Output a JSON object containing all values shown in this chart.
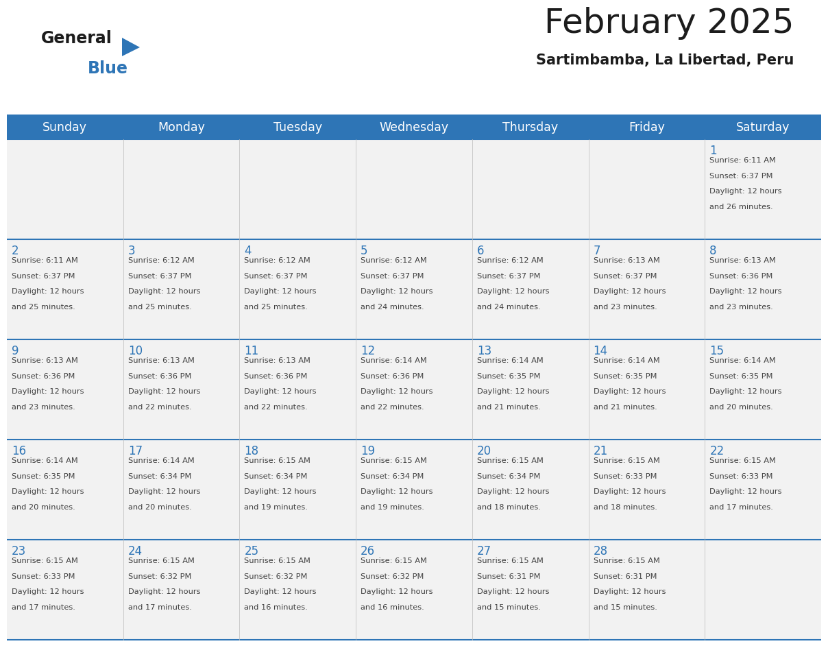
{
  "title": "February 2025",
  "subtitle": "Sartimbamba, La Libertad, Peru",
  "days_of_week": [
    "Sunday",
    "Monday",
    "Tuesday",
    "Wednesday",
    "Thursday",
    "Friday",
    "Saturday"
  ],
  "header_bg": "#2e75b6",
  "header_text": "#ffffff",
  "cell_bg": "#f2f2f2",
  "day_num_color": "#2e75b6",
  "text_color": "#404040",
  "line_color": "#2e75b6",
  "days": [
    {
      "day": 1,
      "col": 6,
      "row": 0,
      "sunrise": "6:11 AM",
      "sunset": "6:37 PM",
      "daylight_suffix": "26 minutes."
    },
    {
      "day": 2,
      "col": 0,
      "row": 1,
      "sunrise": "6:11 AM",
      "sunset": "6:37 PM",
      "daylight_suffix": "25 minutes."
    },
    {
      "day": 3,
      "col": 1,
      "row": 1,
      "sunrise": "6:12 AM",
      "sunset": "6:37 PM",
      "daylight_suffix": "25 minutes."
    },
    {
      "day": 4,
      "col": 2,
      "row": 1,
      "sunrise": "6:12 AM",
      "sunset": "6:37 PM",
      "daylight_suffix": "25 minutes."
    },
    {
      "day": 5,
      "col": 3,
      "row": 1,
      "sunrise": "6:12 AM",
      "sunset": "6:37 PM",
      "daylight_suffix": "24 minutes."
    },
    {
      "day": 6,
      "col": 4,
      "row": 1,
      "sunrise": "6:12 AM",
      "sunset": "6:37 PM",
      "daylight_suffix": "24 minutes."
    },
    {
      "day": 7,
      "col": 5,
      "row": 1,
      "sunrise": "6:13 AM",
      "sunset": "6:37 PM",
      "daylight_suffix": "23 minutes."
    },
    {
      "day": 8,
      "col": 6,
      "row": 1,
      "sunrise": "6:13 AM",
      "sunset": "6:36 PM",
      "daylight_suffix": "23 minutes."
    },
    {
      "day": 9,
      "col": 0,
      "row": 2,
      "sunrise": "6:13 AM",
      "sunset": "6:36 PM",
      "daylight_suffix": "23 minutes."
    },
    {
      "day": 10,
      "col": 1,
      "row": 2,
      "sunrise": "6:13 AM",
      "sunset": "6:36 PM",
      "daylight_suffix": "22 minutes."
    },
    {
      "day": 11,
      "col": 2,
      "row": 2,
      "sunrise": "6:13 AM",
      "sunset": "6:36 PM",
      "daylight_suffix": "22 minutes."
    },
    {
      "day": 12,
      "col": 3,
      "row": 2,
      "sunrise": "6:14 AM",
      "sunset": "6:36 PM",
      "daylight_suffix": "22 minutes."
    },
    {
      "day": 13,
      "col": 4,
      "row": 2,
      "sunrise": "6:14 AM",
      "sunset": "6:35 PM",
      "daylight_suffix": "21 minutes."
    },
    {
      "day": 14,
      "col": 5,
      "row": 2,
      "sunrise": "6:14 AM",
      "sunset": "6:35 PM",
      "daylight_suffix": "21 minutes."
    },
    {
      "day": 15,
      "col": 6,
      "row": 2,
      "sunrise": "6:14 AM",
      "sunset": "6:35 PM",
      "daylight_suffix": "20 minutes."
    },
    {
      "day": 16,
      "col": 0,
      "row": 3,
      "sunrise": "6:14 AM",
      "sunset": "6:35 PM",
      "daylight_suffix": "20 minutes."
    },
    {
      "day": 17,
      "col": 1,
      "row": 3,
      "sunrise": "6:14 AM",
      "sunset": "6:34 PM",
      "daylight_suffix": "20 minutes."
    },
    {
      "day": 18,
      "col": 2,
      "row": 3,
      "sunrise": "6:15 AM",
      "sunset": "6:34 PM",
      "daylight_suffix": "19 minutes."
    },
    {
      "day": 19,
      "col": 3,
      "row": 3,
      "sunrise": "6:15 AM",
      "sunset": "6:34 PM",
      "daylight_suffix": "19 minutes."
    },
    {
      "day": 20,
      "col": 4,
      "row": 3,
      "sunrise": "6:15 AM",
      "sunset": "6:34 PM",
      "daylight_suffix": "18 minutes."
    },
    {
      "day": 21,
      "col": 5,
      "row": 3,
      "sunrise": "6:15 AM",
      "sunset": "6:33 PM",
      "daylight_suffix": "18 minutes."
    },
    {
      "day": 22,
      "col": 6,
      "row": 3,
      "sunrise": "6:15 AM",
      "sunset": "6:33 PM",
      "daylight_suffix": "17 minutes."
    },
    {
      "day": 23,
      "col": 0,
      "row": 4,
      "sunrise": "6:15 AM",
      "sunset": "6:33 PM",
      "daylight_suffix": "17 minutes."
    },
    {
      "day": 24,
      "col": 1,
      "row": 4,
      "sunrise": "6:15 AM",
      "sunset": "6:32 PM",
      "daylight_suffix": "17 minutes."
    },
    {
      "day": 25,
      "col": 2,
      "row": 4,
      "sunrise": "6:15 AM",
      "sunset": "6:32 PM",
      "daylight_suffix": "16 minutes."
    },
    {
      "day": 26,
      "col": 3,
      "row": 4,
      "sunrise": "6:15 AM",
      "sunset": "6:32 PM",
      "daylight_suffix": "16 minutes."
    },
    {
      "day": 27,
      "col": 4,
      "row": 4,
      "sunrise": "6:15 AM",
      "sunset": "6:31 PM",
      "daylight_suffix": "15 minutes."
    },
    {
      "day": 28,
      "col": 5,
      "row": 4,
      "sunrise": "6:15 AM",
      "sunset": "6:31 PM",
      "daylight_suffix": "15 minutes."
    }
  ],
  "num_rows": 5,
  "figsize": [
    11.88,
    9.18
  ],
  "dpi": 100
}
